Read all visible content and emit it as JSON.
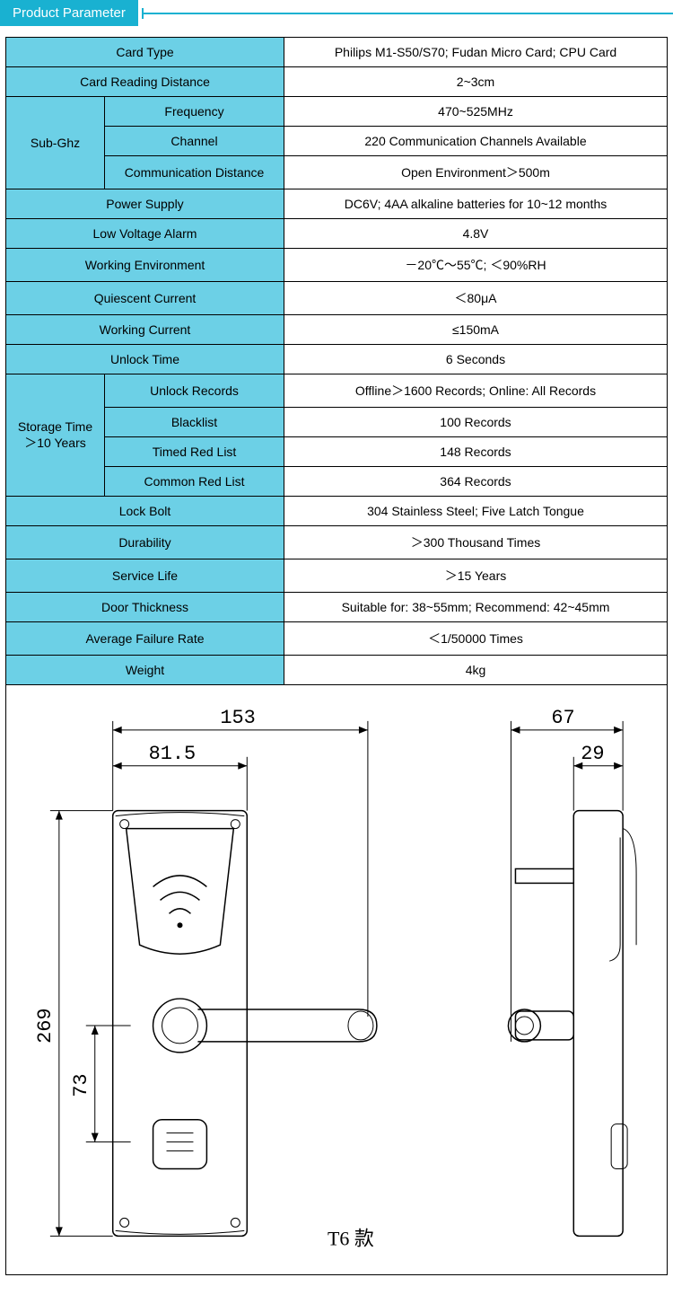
{
  "header": {
    "title": "Product Parameter"
  },
  "table": {
    "header_bg": "#6cd0e6",
    "border_color": "#000000",
    "rows": [
      {
        "type": "simple",
        "label": "Card Type",
        "value": "Philips M1-S50/S70; Fudan Micro Card; CPU Card"
      },
      {
        "type": "simple",
        "label": "Card Reading Distance",
        "value": "2~3cm"
      },
      {
        "type": "group",
        "group_label": "Sub-Ghz",
        "items": [
          {
            "label": "Frequency",
            "value": "470~525MHz"
          },
          {
            "label": "Channel",
            "value": "220 Communication Channels Available"
          },
          {
            "label": "Communication Distance",
            "value": "Open Environment＞500m"
          }
        ]
      },
      {
        "type": "simple",
        "label": "Power Supply",
        "value": "DC6V; 4AA alkaline batteries for 10~12 months"
      },
      {
        "type": "simple",
        "label": "Low Voltage Alarm",
        "value": "4.8V"
      },
      {
        "type": "simple",
        "label": "Working Environment",
        "value": "－20℃～55℃; ＜90%RH"
      },
      {
        "type": "simple",
        "label": "Quiescent Current",
        "value": "＜80μA"
      },
      {
        "type": "simple",
        "label": "Working Current",
        "value": "≤150mA"
      },
      {
        "type": "simple",
        "label": "Unlock Time",
        "value": "6 Seconds"
      },
      {
        "type": "group",
        "group_label": "Storage Time ＞10 Years",
        "items": [
          {
            "label": "Unlock Records",
            "value": "Offline＞1600 Records; Online: All Records"
          },
          {
            "label": "Blacklist",
            "value": "100 Records"
          },
          {
            "label": "Timed Red List",
            "value": "148 Records"
          },
          {
            "label": "Common Red List",
            "value": "364 Records"
          }
        ]
      },
      {
        "type": "simple",
        "label": "Lock Bolt",
        "value": "304 Stainless Steel; Five Latch Tongue"
      },
      {
        "type": "simple",
        "label": "Durability",
        "value": "＞300 Thousand Times"
      },
      {
        "type": "simple",
        "label": "Service Life",
        "value": "＞15 Years"
      },
      {
        "type": "simple",
        "label": "Door Thickness",
        "value": "Suitable for: 38~55mm; Recommend: 42~45mm"
      },
      {
        "type": "simple",
        "label": "Average Failure Rate",
        "value": "＜1/50000 Times"
      },
      {
        "type": "simple",
        "label": "Weight",
        "value": "4kg"
      }
    ]
  },
  "drawing": {
    "product_label": "T6 款",
    "dims": {
      "width_full": "153",
      "width_body": "81.5",
      "height_full": "269",
      "height_lower": "73",
      "side_depth": "67",
      "side_body": "29"
    }
  }
}
